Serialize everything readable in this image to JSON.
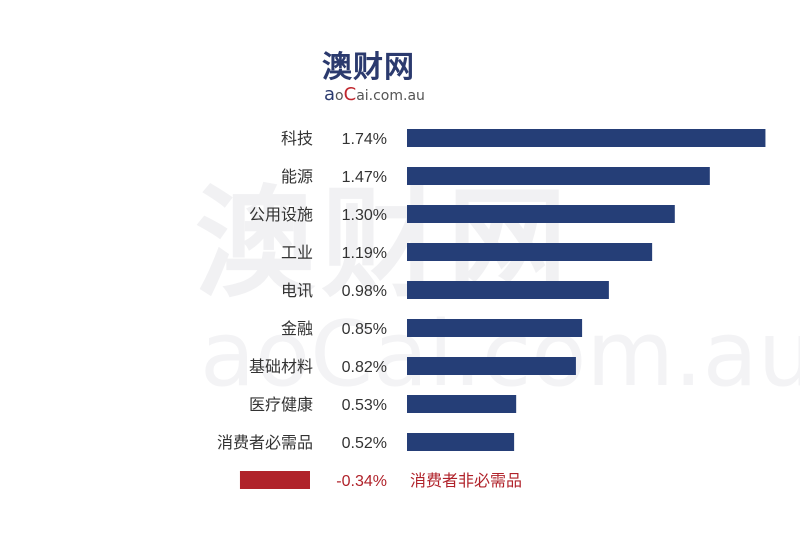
{
  "logo": {
    "title": "澳财网",
    "sub_a": "a",
    "sub_o": "o",
    "sub_c": "C",
    "sub_rest": "ai.com.au"
  },
  "watermark": {
    "title": "澳财网",
    "sub": "aoCai.com.au"
  },
  "colors": {
    "positive": "#253e77",
    "negative": "#b0222a",
    "label": "#333333",
    "negative_label": "#b0222a"
  },
  "chart_data": {
    "type": "bar",
    "orientation": "horizontal",
    "categories": [
      "科技",
      "能源",
      "公用设施",
      "工业",
      "电讯",
      "金融",
      "基础材料",
      "医疗健康",
      "消费者必需品",
      "消费者非必需品"
    ],
    "values": [
      1.74,
      1.47,
      1.3,
      1.19,
      0.98,
      0.85,
      0.82,
      0.53,
      0.52,
      -0.34
    ],
    "value_labels": [
      "1.74%",
      "1.47%",
      "1.30%",
      "1.19%",
      "0.98%",
      "0.85%",
      "0.82%",
      "0.53%",
      "0.52%",
      "-0.34%"
    ],
    "title": "",
    "xlabel": "",
    "ylabel": "",
    "grid": false
  }
}
